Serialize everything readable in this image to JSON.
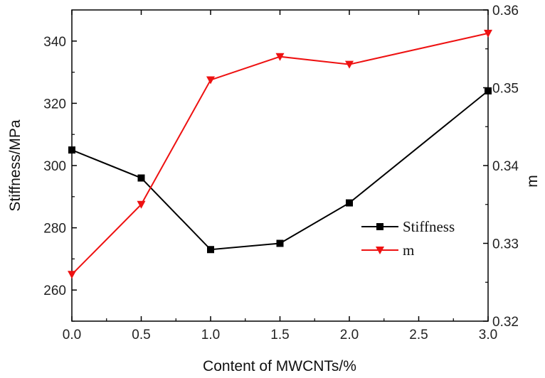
{
  "chart_data": {
    "type": "line",
    "x": [
      0.0,
      0.5,
      1.0,
      1.5,
      2.0,
      3.0
    ],
    "series": [
      {
        "name": "Stiffness",
        "axis": "left",
        "color": "#000000",
        "marker": "square",
        "values": [
          305,
          296,
          273,
          275,
          288,
          324
        ]
      },
      {
        "name": "m",
        "axis": "right",
        "color": "#ee1111",
        "marker": "triangle-down",
        "values": [
          0.326,
          0.335,
          0.351,
          0.354,
          0.353,
          0.357
        ]
      }
    ],
    "xlabel": "Content of MWCNTs/%",
    "ylabel_left": "Stiffness/MPa",
    "ylabel_right": "m",
    "xlim": [
      0.0,
      3.0
    ],
    "ylim_left": [
      250,
      350
    ],
    "ylim_right": [
      0.32,
      0.36
    ],
    "x_ticks": [
      0.0,
      0.5,
      1.0,
      1.5,
      2.0,
      2.5,
      3.0
    ],
    "x_tick_labels": [
      "0.0",
      "0.5",
      "1.0",
      "1.5",
      "2.0",
      "2.5",
      "3.0"
    ],
    "y_left_ticks": [
      260,
      280,
      300,
      320,
      340
    ],
    "y_left_tick_labels": [
      "260",
      "280",
      "300",
      "320",
      "340"
    ],
    "y_right_ticks": [
      0.32,
      0.33,
      0.34,
      0.35,
      0.36
    ],
    "y_right_tick_labels": [
      "0.32",
      "0.33",
      "0.34",
      "0.35",
      "0.36"
    ],
    "legend": {
      "position": "center-right",
      "entries": [
        "Stiffness",
        "m"
      ]
    }
  }
}
